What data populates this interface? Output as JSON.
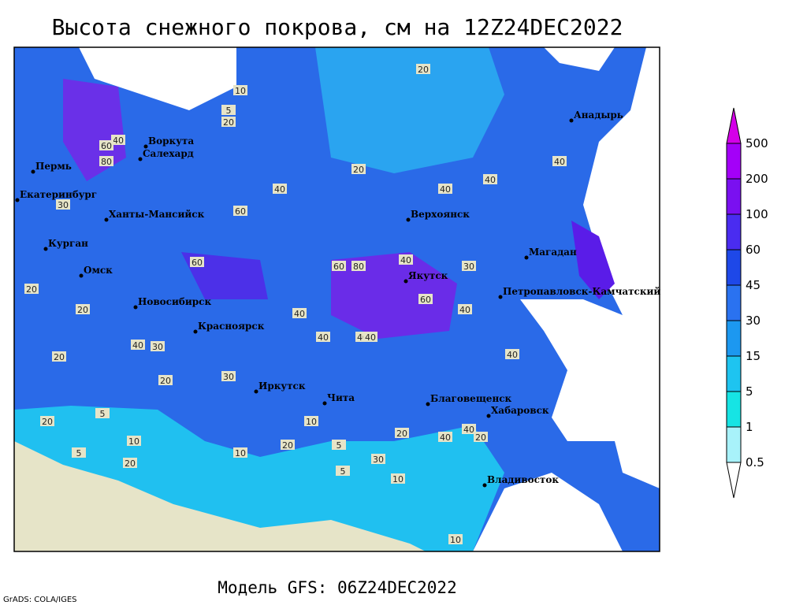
{
  "title": "Высота снежного покрова, см на 12Z24DEC2022",
  "footer": "Модель GFS: 06Z24DEC2022",
  "credit": "GrADS: COLA/IGES",
  "legend": {
    "levels": [
      500,
      200,
      100,
      60,
      45,
      30,
      15,
      5,
      1,
      0.5
    ],
    "colors": [
      "#d400e8",
      "#a400f8",
      "#7a10f0",
      "#4a2cf0",
      "#1e48e8",
      "#2a72f0",
      "#1c98f0",
      "#1ec4f0",
      "#16e4e4",
      "#a8f2fa",
      "#ffffff"
    ]
  },
  "cities": [
    "Воркута",
    "Салехард",
    "Пермь",
    "Екатеринбург",
    "Ханты-Мансийск",
    "Курган",
    "Омск",
    "Новосибирск",
    "Красноярск",
    "Иркутск",
    "Чита",
    "Верхоянск",
    "Якутск",
    "Магадан",
    "Петропавловск-Камчатский",
    "Анадырь",
    "Благовещенск",
    "Хабаровск",
    "Владивосток"
  ],
  "contour_labels": [
    20,
    30,
    20,
    10,
    5,
    20,
    40,
    60,
    80,
    40,
    20,
    40,
    40,
    40,
    60,
    40,
    40,
    40,
    40,
    60,
    60,
    80,
    60,
    40,
    40,
    30,
    20,
    20,
    20,
    10,
    5,
    20,
    30,
    10,
    5,
    20,
    10,
    40,
    30,
    5,
    20,
    40,
    20,
    10,
    5,
    40,
    30,
    40,
    20,
    10
  ]
}
